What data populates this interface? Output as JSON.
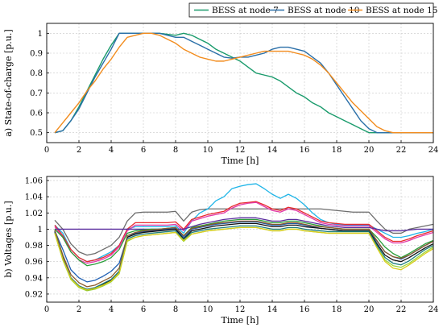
{
  "chart_data": [
    {
      "type": "line",
      "title": "",
      "xlabel": "Time [h]",
      "ylabel": "a) State-of-charge [p.u.]",
      "xlim": [
        0,
        24
      ],
      "ylim": [
        0.45,
        1.05
      ],
      "xticks": [
        0,
        2,
        4,
        6,
        8,
        10,
        12,
        14,
        16,
        18,
        20,
        22,
        24
      ],
      "yticks": [
        0.5,
        0.6,
        0.7,
        0.8,
        0.9,
        1
      ],
      "ytick_labels": [
        "0.5",
        "0.6",
        "0.7",
        "0.8",
        "0.9",
        "1"
      ],
      "grid": true,
      "legend_position": "top-right",
      "series": [
        {
          "name": "BESS at node 7",
          "color": "#1a9b6c",
          "x": [
            0.5,
            1,
            1.5,
            2,
            2.5,
            3,
            3.5,
            4,
            4.5,
            5,
            5.5,
            6,
            6.5,
            7,
            7.5,
            8,
            8.5,
            9,
            9.5,
            10,
            10.5,
            11,
            11.5,
            12,
            12.5,
            13,
            13.5,
            14,
            14.5,
            15,
            15.5,
            16,
            16.5,
            17,
            17.5,
            18,
            18.5,
            19,
            19.5,
            20,
            20.5,
            24
          ],
          "y": [
            0.5,
            0.51,
            0.56,
            0.63,
            0.71,
            0.79,
            0.87,
            0.94,
            1,
            1,
            1,
            1,
            1,
            1,
            0.995,
            0.99,
            1,
            0.99,
            0.97,
            0.95,
            0.92,
            0.9,
            0.88,
            0.86,
            0.83,
            0.8,
            0.79,
            0.78,
            0.76,
            0.73,
            0.7,
            0.68,
            0.65,
            0.63,
            0.6,
            0.58,
            0.56,
            0.54,
            0.52,
            0.5,
            0.5,
            0.5
          ]
        },
        {
          "name": "BESS at node 10",
          "color": "#2a6fa8",
          "x": [
            0.5,
            1,
            1.5,
            2,
            2.5,
            3,
            3.5,
            4,
            4.5,
            5,
            5.5,
            6,
            6.5,
            7,
            7.5,
            8,
            8.5,
            9,
            9.5,
            10,
            10.5,
            11,
            11.5,
            12,
            12.5,
            13,
            13.5,
            14,
            14.5,
            15,
            15.5,
            16,
            16.5,
            17,
            17.5,
            18,
            18.5,
            19,
            19.5,
            20,
            20.5,
            24
          ],
          "y": [
            0.5,
            0.51,
            0.56,
            0.62,
            0.7,
            0.78,
            0.85,
            0.92,
            1,
            1,
            1,
            1,
            1,
            1,
            0.99,
            0.98,
            0.98,
            0.96,
            0.94,
            0.92,
            0.9,
            0.88,
            0.875,
            0.88,
            0.88,
            0.89,
            0.9,
            0.92,
            0.93,
            0.93,
            0.92,
            0.91,
            0.88,
            0.85,
            0.8,
            0.74,
            0.68,
            0.62,
            0.56,
            0.52,
            0.5,
            0.5
          ]
        },
        {
          "name": "BESS at node 15",
          "color": "#f28c1e",
          "x": [
            0.5,
            1,
            1.5,
            2,
            2.5,
            3,
            3.5,
            4,
            4.5,
            5,
            5.5,
            6,
            6.5,
            7,
            7.5,
            8,
            8.5,
            9,
            9.5,
            10,
            10.5,
            11,
            11.5,
            12,
            12.5,
            13,
            13.5,
            14,
            14.5,
            15,
            15.5,
            16,
            16.5,
            17,
            17.5,
            18,
            18.5,
            19,
            19.5,
            20,
            20.5,
            21,
            21.5,
            24
          ],
          "y": [
            0.5,
            0.55,
            0.6,
            0.65,
            0.71,
            0.76,
            0.82,
            0.87,
            0.93,
            0.98,
            0.99,
            1,
            1,
            0.99,
            0.97,
            0.95,
            0.92,
            0.9,
            0.88,
            0.87,
            0.86,
            0.86,
            0.87,
            0.88,
            0.89,
            0.9,
            0.91,
            0.91,
            0.91,
            0.91,
            0.9,
            0.89,
            0.87,
            0.84,
            0.8,
            0.75,
            0.7,
            0.65,
            0.61,
            0.57,
            0.53,
            0.51,
            0.5,
            0.5
          ]
        }
      ]
    },
    {
      "type": "line",
      "title": "",
      "xlabel": "Time [h]",
      "ylabel": "b) Voltages [p.u.]",
      "xlim": [
        0,
        24
      ],
      "ylim": [
        0.91,
        1.065
      ],
      "xticks": [
        0,
        2,
        4,
        6,
        8,
        10,
        12,
        14,
        16,
        18,
        20,
        22,
        24
      ],
      "yticks": [
        0.92,
        0.94,
        0.96,
        0.98,
        1,
        1.02,
        1.04,
        1.06
      ],
      "ytick_labels": [
        "0.92",
        "0.94",
        "0.96",
        "0.98",
        "1",
        "1.02",
        "1.04",
        "1.06"
      ],
      "grid": true,
      "x": [
        0.5,
        1,
        1.5,
        2,
        2.5,
        3,
        3.5,
        4,
        4.5,
        5,
        5.5,
        6,
        6.5,
        7,
        7.5,
        8,
        8.5,
        9,
        9.5,
        10,
        10.5,
        11,
        11.5,
        12,
        12.5,
        13,
        13.5,
        14,
        14.5,
        15,
        15.5,
        16,
        16.5,
        17,
        17.5,
        18,
        18.5,
        19,
        19.5,
        20,
        20.5,
        21,
        21.5,
        22,
        22.5,
        23,
        23.5,
        24
      ],
      "series": [
        {
          "color": "#6d6d6d",
          "values": [
            1.011,
            1,
            0.982,
            0.972,
            0.968,
            0.97,
            0.975,
            0.98,
            0.99,
            1.01,
            1.02,
            1.021,
            1.021,
            1.021,
            1.021,
            1.022,
            1.01,
            1.021,
            1.024,
            1.025,
            1.025,
            1.025,
            1.025,
            1.025,
            1.025,
            1.025,
            1.025,
            1.025,
            1.025,
            1.025,
            1.025,
            1.025,
            1.025,
            1.025,
            1.024,
            1.023,
            1.022,
            1.021,
            1.021,
            1.021,
            1.01,
            1,
            0.995,
            0.995,
            1,
            1.002,
            1.004,
            1.006
          ]
        },
        {
          "color": "#1fb5e8",
          "values": [
            1.005,
            0.995,
            0.975,
            0.965,
            0.96,
            0.962,
            0.967,
            0.972,
            0.98,
            1.0,
            1.003,
            1.003,
            1.003,
            1.003,
            1.003,
            1.004,
            0.995,
            1.01,
            1.02,
            1.025,
            1.035,
            1.04,
            1.05,
            1.053,
            1.055,
            1.056,
            1.05,
            1.043,
            1.038,
            1.043,
            1.038,
            1.03,
            1.02,
            1.012,
            1.008,
            1.006,
            1.005,
            1.005,
            1.005,
            1.005,
            1.0,
            0.995,
            0.99,
            0.99,
            0.992,
            0.995,
            0.997,
            1.0
          ]
        },
        {
          "color": "#e8292c",
          "values": [
            1.005,
            0.992,
            0.975,
            0.965,
            0.96,
            0.962,
            0.965,
            0.97,
            0.98,
            1.0,
            1.008,
            1.008,
            1.008,
            1.008,
            1.008,
            1.009,
            1.0,
            1.012,
            1.015,
            1.018,
            1.02,
            1.022,
            1.028,
            1.032,
            1.033,
            1.034,
            1.03,
            1.025,
            1.023,
            1.027,
            1.025,
            1.02,
            1.015,
            1.01,
            1.008,
            1.007,
            1.006,
            1.006,
            1.006,
            1.006,
            0.998,
            0.99,
            0.985,
            0.985,
            0.988,
            0.992,
            0.995,
            0.998
          ]
        },
        {
          "color": "#e23aa8",
          "values": [
            1.003,
            0.99,
            0.972,
            0.962,
            0.958,
            0.96,
            0.963,
            0.968,
            0.978,
            0.998,
            1.005,
            1.005,
            1.005,
            1.005,
            1.005,
            1.006,
            0.998,
            1.01,
            1.013,
            1.016,
            1.018,
            1.02,
            1.026,
            1.03,
            1.032,
            1.033,
            1.028,
            1.023,
            1.021,
            1.025,
            1.023,
            1.018,
            1.013,
            1.008,
            1.006,
            1.005,
            1.004,
            1.004,
            1.004,
            1.004,
            0.996,
            0.988,
            0.983,
            0.983,
            0.986,
            0.99,
            0.993,
            0.996
          ]
        },
        {
          "color": "#5a2d9e",
          "values": [
            1,
            1,
            1,
            1,
            1,
            1,
            1,
            1,
            1,
            1,
            1,
            1,
            1,
            1,
            1,
            1,
            1,
            1.003,
            1.006,
            1.008,
            1.01,
            1.012,
            1.013,
            1.014,
            1.014,
            1.014,
            1.012,
            1.01,
            1.01,
            1.012,
            1.012,
            1.01,
            1.008,
            1.006,
            1.004,
            1.003,
            1.002,
            1.002,
            1.002,
            1.002,
            1.0,
            0.998,
            0.998,
            0.998,
            0.999,
            1.0,
            1.0,
            1.0
          ]
        },
        {
          "color": "#2a9e3a",
          "values": [
            1.0,
            0.99,
            0.972,
            0.962,
            0.955,
            0.957,
            0.96,
            0.965,
            0.975,
            0.995,
            0.998,
            0.999,
            1.0,
            1.0,
            1.001,
            1.002,
            0.992,
            1.002,
            1.004,
            1.006,
            1.008,
            1.01,
            1.011,
            1.012,
            1.012,
            1.012,
            1.01,
            1.008,
            1.008,
            1.01,
            1.01,
            1.008,
            1.006,
            1.004,
            1.002,
            1.001,
            1.0,
            1.0,
            1.0,
            1.0,
            0.99,
            0.978,
            0.97,
            0.965,
            0.97,
            0.976,
            0.982,
            0.986
          ]
        },
        {
          "color": "#1f5fb4",
          "values": [
            0.998,
            0.975,
            0.95,
            0.94,
            0.935,
            0.937,
            0.942,
            0.948,
            0.958,
            0.99,
            0.995,
            0.997,
            0.998,
            0.999,
            1.0,
            1.001,
            0.99,
            1.0,
            1.002,
            1.004,
            1.006,
            1.007,
            1.008,
            1.009,
            1.009,
            1.009,
            1.007,
            1.005,
            1.005,
            1.007,
            1.007,
            1.005,
            1.003,
            1.001,
            1.0,
            0.999,
            0.998,
            0.998,
            0.998,
            0.998,
            0.985,
            0.972,
            0.966,
            0.963,
            0.968,
            0.974,
            0.98,
            0.985
          ]
        },
        {
          "color": "#9ad63a",
          "values": [
            0.995,
            0.962,
            0.938,
            0.928,
            0.924,
            0.926,
            0.93,
            0.935,
            0.945,
            0.985,
            0.99,
            0.992,
            0.993,
            0.994,
            0.995,
            0.996,
            0.985,
            0.994,
            0.996,
            0.998,
            0.999,
            1.0,
            1.001,
            1.002,
            1.002,
            1.002,
            1.0,
            0.998,
            0.998,
            1.0,
            1.0,
            0.998,
            0.997,
            0.996,
            0.995,
            0.995,
            0.995,
            0.995,
            0.995,
            0.995,
            0.978,
            0.962,
            0.955,
            0.953,
            0.958,
            0.965,
            0.972,
            0.978
          ]
        },
        {
          "color": "#111111",
          "values": [
            0.997,
            0.965,
            0.94,
            0.93,
            0.925,
            0.927,
            0.932,
            0.937,
            0.948,
            0.99,
            0.994,
            0.996,
            0.997,
            0.998,
            0.999,
            1.0,
            0.988,
            0.998,
            1.0,
            1.002,
            1.004,
            1.005,
            1.006,
            1.007,
            1.007,
            1.007,
            1.005,
            1.003,
            1.003,
            1.005,
            1.005,
            1.003,
            1.002,
            1.001,
            1.0,
            0.999,
            0.998,
            0.998,
            0.998,
            0.998,
            0.982,
            0.968,
            0.962,
            0.96,
            0.965,
            0.971,
            0.977,
            0.982
          ]
        },
        {
          "color": "#8c5a2b",
          "values": [
            0.999,
            0.968,
            0.944,
            0.934,
            0.929,
            0.931,
            0.936,
            0.941,
            0.952,
            0.992,
            0.996,
            0.998,
            0.999,
            1.0,
            1.001,
            1.002,
            0.992,
            1.001,
            1.003,
            1.005,
            1.007,
            1.008,
            1.009,
            1.01,
            1.01,
            1.01,
            1.008,
            1.006,
            1.006,
            1.008,
            1.008,
            1.006,
            1.004,
            1.003,
            1.002,
            1.001,
            1.0,
            1.0,
            1.0,
            1.0,
            0.986,
            0.972,
            0.966,
            0.964,
            0.968,
            0.974,
            0.98,
            0.985
          ]
        },
        {
          "color": "#1e7d7d",
          "values": [
            0.996,
            0.964,
            0.94,
            0.93,
            0.926,
            0.928,
            0.933,
            0.938,
            0.948,
            0.988,
            0.992,
            0.994,
            0.995,
            0.996,
            0.997,
            0.998,
            0.987,
            0.996,
            0.998,
            1.0,
            1.001,
            1.002,
            1.003,
            1.004,
            1.004,
            1.004,
            1.002,
            1.0,
            1.0,
            1.002,
            1.002,
            1.0,
            0.999,
            0.998,
            0.997,
            0.997,
            0.997,
            0.997,
            0.997,
            0.997,
            0.98,
            0.965,
            0.958,
            0.956,
            0.961,
            0.968,
            0.975,
            0.98
          ]
        },
        {
          "color": "#d9cc1a",
          "values": [
            0.995,
            0.963,
            0.939,
            0.929,
            0.925,
            0.927,
            0.931,
            0.936,
            0.946,
            0.986,
            0.99,
            0.992,
            0.993,
            0.994,
            0.995,
            0.996,
            0.986,
            0.994,
            0.996,
            0.998,
            0.999,
            1.0,
            1.001,
            1.002,
            1.002,
            1.002,
            1.0,
            0.998,
            0.998,
            1.0,
            1.0,
            0.998,
            0.997,
            0.996,
            0.995,
            0.995,
            0.995,
            0.995,
            0.995,
            0.995,
            0.977,
            0.96,
            0.952,
            0.95,
            0.956,
            0.963,
            0.97,
            0.976
          ]
        }
      ]
    }
  ]
}
